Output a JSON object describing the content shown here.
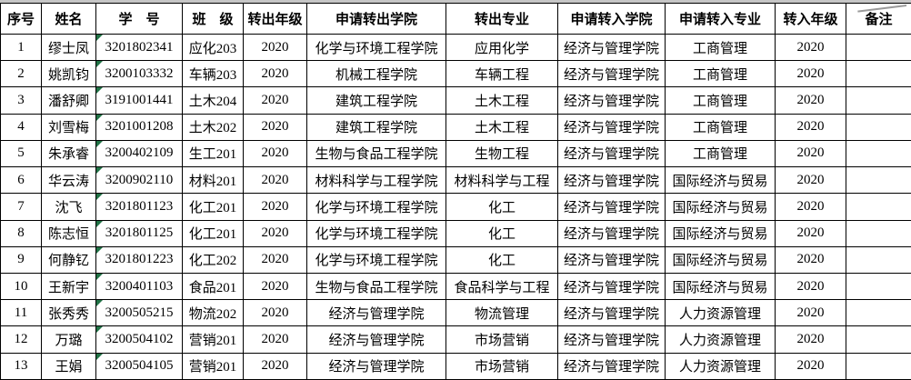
{
  "table": {
    "headers": [
      "序号",
      "姓名",
      "学　号",
      "班　级",
      "转出年级",
      "申请转出学院",
      "转出专业",
      "申请转入学院",
      "申请转入专业",
      "转入年级",
      "备注"
    ],
    "rows": [
      [
        "1",
        "缪士凤",
        "3201802341",
        "应化203",
        "2020",
        "化学与环境工程学院",
        "应用化学",
        "经济与管理学院",
        "工商管理",
        "2020",
        ""
      ],
      [
        "2",
        "姚凯钧",
        "3200103332",
        "车辆203",
        "2020",
        "机械工程学院",
        "车辆工程",
        "经济与管理学院",
        "工商管理",
        "2020",
        ""
      ],
      [
        "3",
        "潘舒卿",
        "3191001441",
        "土木204",
        "2020",
        "建筑工程学院",
        "土木工程",
        "经济与管理学院",
        "工商管理",
        "2020",
        ""
      ],
      [
        "4",
        "刘雪梅",
        "3201001208",
        "土木202",
        "2020",
        "建筑工程学院",
        "土木工程",
        "经济与管理学院",
        "工商管理",
        "2020",
        ""
      ],
      [
        "5",
        "朱承睿",
        "3200402109",
        "生工201",
        "2020",
        "生物与食品工程学院",
        "生物工程",
        "经济与管理学院",
        "工商管理",
        "2020",
        ""
      ],
      [
        "6",
        "华云涛",
        "3200902110",
        "材料201",
        "2020",
        "材料科学与工程学院",
        "材料科学与工程",
        "经济与管理学院",
        "国际经济与贸易",
        "2020",
        ""
      ],
      [
        "7",
        "沈飞",
        "3201801123",
        "化工201",
        "2020",
        "化学与环境工程学院",
        "化工",
        "经济与管理学院",
        "国际经济与贸易",
        "2020",
        ""
      ],
      [
        "8",
        "陈志恒",
        "3201801125",
        "化工201",
        "2020",
        "化学与环境工程学院",
        "化工",
        "经济与管理学院",
        "国际经济与贸易",
        "2020",
        ""
      ],
      [
        "9",
        "何静钇",
        "3201801223",
        "化工202",
        "2020",
        "化学与环境工程学院",
        "化工",
        "经济与管理学院",
        "国际经济与贸易",
        "2020",
        ""
      ],
      [
        "10",
        "王新宇",
        "3200401103",
        "食品201",
        "2020",
        "生物与食品工程学院",
        "食品科学与工程",
        "经济与管理学院",
        "国际经济与贸易",
        "2020",
        ""
      ],
      [
        "11",
        "张秀秀",
        "3200505215",
        "物流202",
        "2020",
        "经济与管理学院",
        "物流管理",
        "经济与管理学院",
        "人力资源管理",
        "2020",
        ""
      ],
      [
        "12",
        "万璐",
        "3200504102",
        "营销201",
        "2020",
        "经济与管理学院",
        "市场营销",
        "经济与管理学院",
        "人力资源管理",
        "2020",
        ""
      ],
      [
        "13",
        "王娟",
        "3200504105",
        "营销201",
        "2020",
        "经济与管理学院",
        "市场营销",
        "经济与管理学院",
        "人力资源管理",
        "2020",
        ""
      ]
    ],
    "student_id_column_index": 2,
    "colors": {
      "border": "#000000",
      "text": "#000000",
      "background": "#ffffff",
      "number_as_text_indicator": "#217346",
      "top_strip": "#c6c6c6"
    }
  }
}
